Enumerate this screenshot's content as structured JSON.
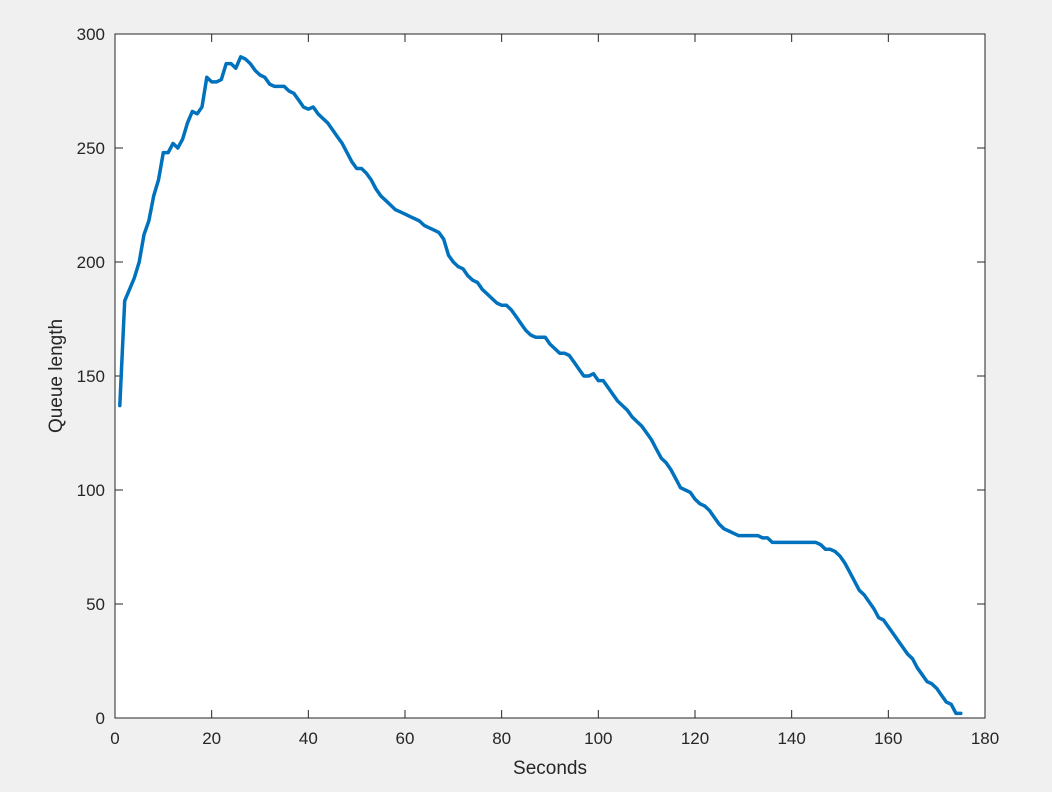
{
  "chart_data": {
    "type": "line",
    "title": "",
    "xlabel": "Seconds",
    "ylabel": "Queue length",
    "xlim": [
      0,
      180
    ],
    "ylim": [
      0,
      300
    ],
    "xticks": [
      0,
      20,
      40,
      60,
      80,
      100,
      120,
      140,
      160,
      180
    ],
    "yticks": [
      0,
      50,
      100,
      150,
      200,
      250,
      300
    ],
    "grid": false,
    "series": [
      {
        "color": "#0072BD",
        "x": [
          1,
          2,
          3,
          4,
          5,
          6,
          7,
          8,
          9,
          10,
          11,
          12,
          13,
          14,
          15,
          16,
          17,
          18,
          19,
          20,
          21,
          22,
          23,
          24,
          25,
          26,
          27,
          28,
          29,
          30,
          31,
          32,
          33,
          34,
          35,
          36,
          37,
          38,
          39,
          40,
          41,
          42,
          43,
          44,
          45,
          46,
          47,
          48,
          49,
          50,
          51,
          52,
          53,
          54,
          55,
          56,
          57,
          58,
          59,
          60,
          61,
          62,
          63,
          64,
          65,
          66,
          67,
          68,
          69,
          70,
          71,
          72,
          73,
          74,
          75,
          76,
          77,
          78,
          79,
          80,
          81,
          82,
          83,
          84,
          85,
          86,
          87,
          88,
          89,
          90,
          91,
          92,
          93,
          94,
          95,
          96,
          97,
          98,
          99,
          100,
          101,
          102,
          103,
          104,
          105,
          106,
          107,
          108,
          109,
          110,
          111,
          112,
          113,
          114,
          115,
          116,
          117,
          118,
          119,
          120,
          121,
          122,
          123,
          124,
          125,
          126,
          127,
          128,
          129,
          130,
          131,
          132,
          133,
          134,
          135,
          136,
          137,
          138,
          139,
          140,
          141,
          142,
          143,
          144,
          145,
          146,
          147,
          148,
          149,
          150,
          151,
          152,
          153,
          154,
          155,
          156,
          157,
          158,
          159,
          160,
          161,
          162,
          163,
          164,
          165,
          166,
          167,
          168,
          169,
          170,
          171,
          172,
          173,
          174,
          175
        ],
        "values": [
          137,
          183,
          188,
          193,
          200,
          212,
          218,
          229,
          236,
          248,
          248,
          252,
          250,
          254,
          261,
          266,
          265,
          268,
          281,
          279,
          279,
          280,
          287,
          287,
          285,
          290,
          289,
          287,
          284,
          282,
          281,
          278,
          277,
          277,
          277,
          275,
          274,
          271,
          268,
          267,
          268,
          265,
          263,
          261,
          258,
          255,
          252,
          248,
          244,
          241,
          241,
          239,
          236,
          232,
          229,
          227,
          225,
          223,
          222,
          221,
          220,
          219,
          218,
          216,
          215,
          214,
          213,
          210,
          203,
          200,
          198,
          197,
          194,
          192,
          191,
          188,
          186,
          184,
          182,
          181,
          181,
          179,
          176,
          173,
          170,
          168,
          167,
          167,
          167,
          164,
          162,
          160,
          160,
          159,
          156,
          153,
          150,
          150,
          151,
          148,
          148,
          145,
          142,
          139,
          137,
          135,
          132,
          130,
          128,
          125,
          122,
          118,
          114,
          112,
          109,
          105,
          101,
          100,
          99,
          96,
          94,
          93,
          91,
          88,
          85,
          83,
          82,
          81,
          80,
          80,
          80,
          80,
          80,
          79,
          79,
          77,
          77,
          77,
          77,
          77,
          77,
          77,
          77,
          77,
          77,
          76,
          74,
          74,
          73,
          71,
          68,
          64,
          60,
          56,
          54,
          51,
          48,
          44,
          43,
          40,
          37,
          34,
          31,
          28,
          26,
          22,
          19,
          16,
          15,
          13,
          10,
          7,
          6,
          2,
          2
        ]
      }
    ]
  }
}
